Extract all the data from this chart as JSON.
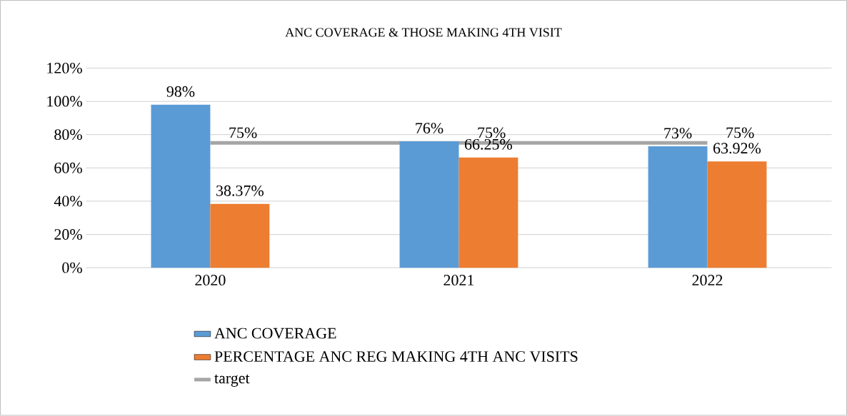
{
  "chart_data": {
    "type": "bar",
    "title": "ANC COVERAGE & THOSE MAKING 4TH VISIT",
    "categories": [
      "2020",
      "2021",
      "2022"
    ],
    "series": [
      {
        "name": "ANC COVERAGE",
        "color": "#5b9bd5",
        "values": [
          98,
          76,
          73
        ],
        "value_labels": [
          "98%",
          "76%",
          "73%"
        ]
      },
      {
        "name": "PERCENTAGE ANC REG MAKING 4TH ANC VISITS",
        "color": "#ed7d31",
        "values": [
          38.37,
          66.25,
          63.92
        ],
        "value_labels": [
          "38.37%",
          "66.25%",
          "63.92%"
        ]
      },
      {
        "name": "target",
        "type": "line",
        "color": "#a5a5a5",
        "values": [
          75,
          75,
          75
        ],
        "value_labels": [
          "75%",
          "75%",
          "75%"
        ]
      }
    ],
    "ylim": [
      0,
      120
    ],
    "yticks": [
      {
        "value": 0,
        "label": "0%"
      },
      {
        "value": 20,
        "label": "20%"
      },
      {
        "value": 40,
        "label": "40%"
      },
      {
        "value": 60,
        "label": "60%"
      },
      {
        "value": 80,
        "label": "80%"
      },
      {
        "value": 100,
        "label": "100%"
      },
      {
        "value": 120,
        "label": "120%"
      }
    ],
    "grid": "y",
    "legend": "bottom"
  }
}
